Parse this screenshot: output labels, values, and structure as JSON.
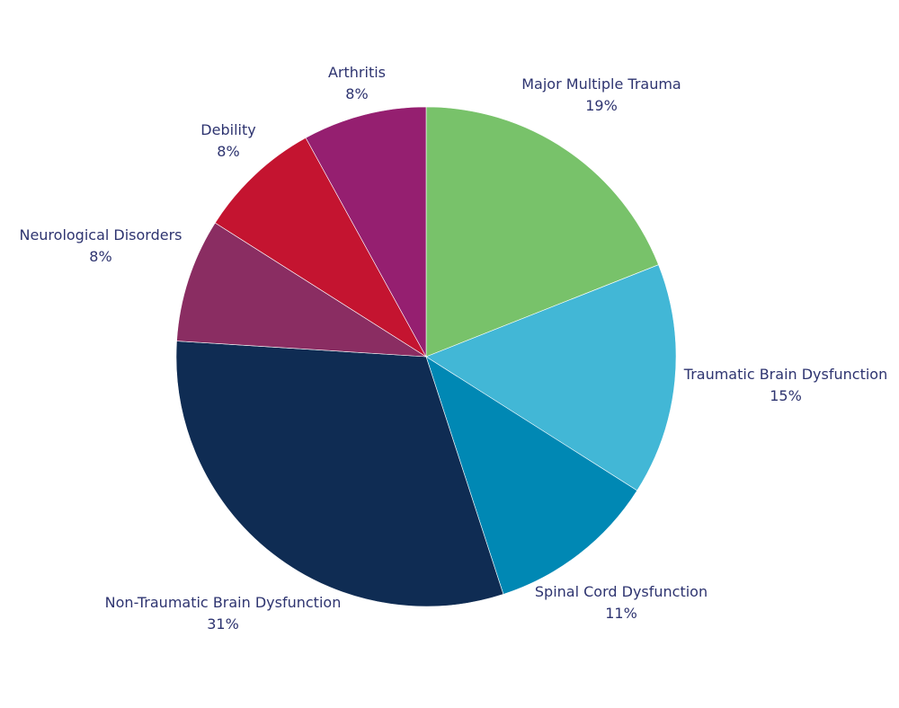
{
  "chart_data": {
    "type": "pie",
    "title": "",
    "start_angle_deg": 0,
    "direction": "clockwise",
    "slices": [
      {
        "label": "Major Multiple Trauma",
        "value": 19,
        "value_label": "19%",
        "color": "#78c26a"
      },
      {
        "label": "Traumatic Brain Dysfunction",
        "value": 15,
        "value_label": "15%",
        "color": "#42b7d6"
      },
      {
        "label": "Spinal Cord Dysfunction",
        "value": 11,
        "value_label": "11%",
        "color": "#0088b4"
      },
      {
        "label": "Non-Traumatic Brain Dysfunction",
        "value": 31,
        "value_label": "31%",
        "color": "#0f2c53"
      },
      {
        "label": "Neurological Disorders",
        "value": 8,
        "value_label": "8%",
        "color": "#8a2d62"
      },
      {
        "label": "Debility",
        "value": 8,
        "value_label": "8%",
        "color": "#c41430"
      },
      {
        "label": "Arthritis",
        "value": 8,
        "value_label": "8%",
        "color": "#951f70"
      }
    ],
    "label_color": "#2e3470",
    "legend": "none"
  }
}
